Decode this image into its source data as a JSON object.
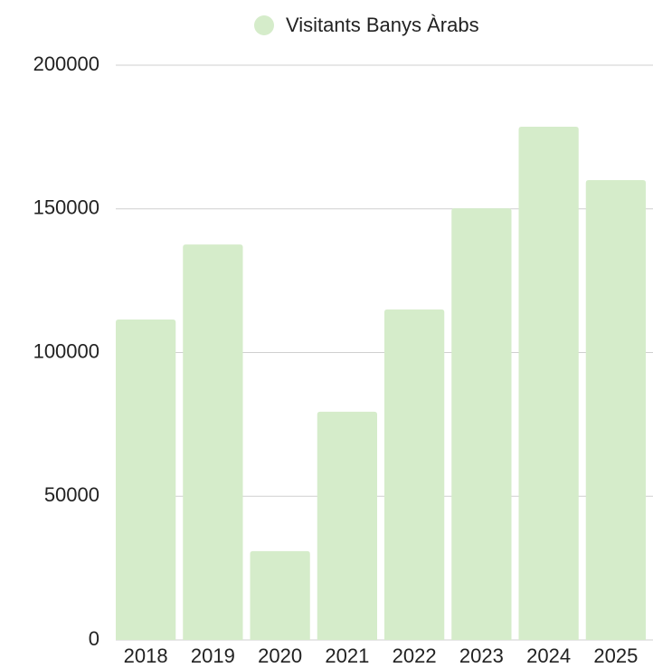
{
  "chart_data": {
    "type": "bar",
    "categories": [
      "2018",
      "2019",
      "2020",
      "2021",
      "2022",
      "2023",
      "2024",
      "2025"
    ],
    "series": [
      {
        "name": "Visitants Banys Àrabs",
        "color": "#d5ecca",
        "values": [
          111500,
          137600,
          30900,
          79400,
          115000,
          150200,
          178600,
          160000
        ]
      }
    ],
    "ylim": [
      0,
      200000
    ],
    "yticks": [
      0,
      50000,
      100000,
      150000,
      200000
    ],
    "grid": true,
    "legend": "top"
  }
}
